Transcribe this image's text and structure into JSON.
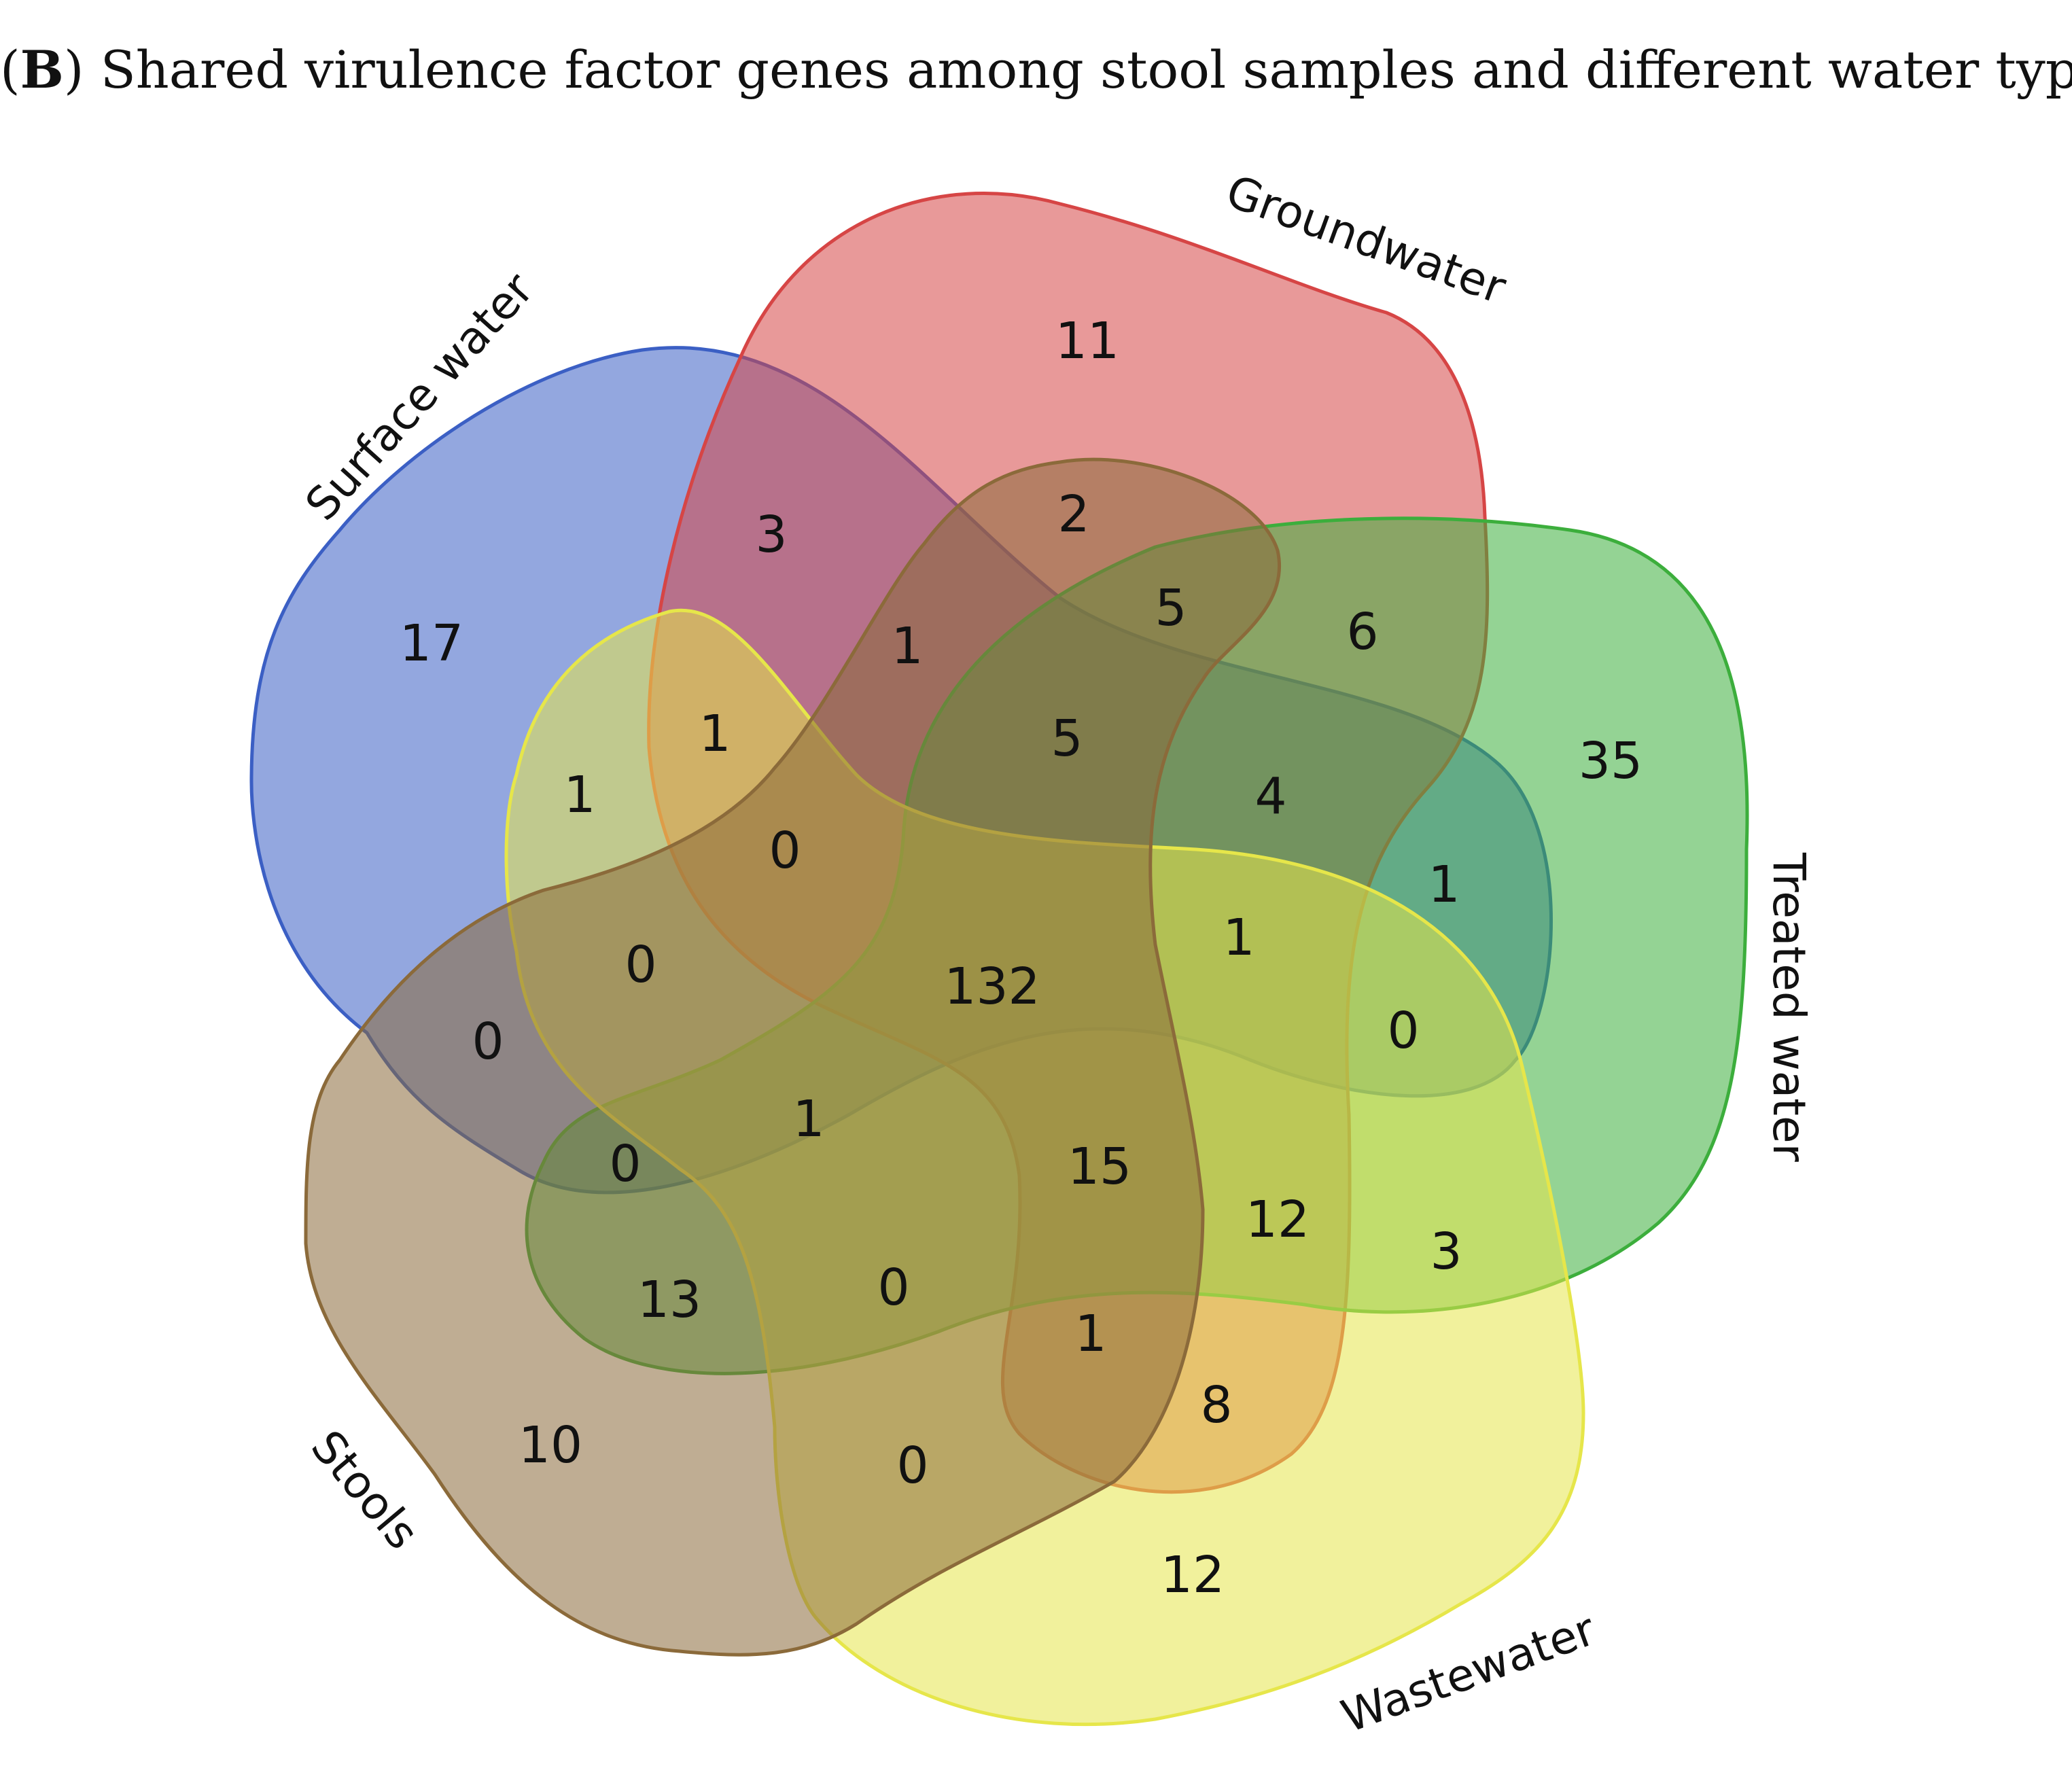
{
  "title": {
    "panel_letter": "B",
    "text": "Shared virulence factor genes among stool samples and different water types"
  },
  "sets": [
    {
      "name": "Surface water",
      "color": "#3b5fc4"
    },
    {
      "name": "Groundwater",
      "color": "#d64545"
    },
    {
      "name": "Treated water",
      "color": "#3cae3c"
    },
    {
      "name": "Wastewater",
      "color": "#e6e64a"
    },
    {
      "name": "Stools",
      "color": "#8b6a3a"
    }
  ],
  "regions": [
    {
      "sets": [
        "Surface water"
      ],
      "count": "17"
    },
    {
      "sets": [
        "Groundwater"
      ],
      "count": "11"
    },
    {
      "sets": [
        "Treated water"
      ],
      "count": "35"
    },
    {
      "sets": [
        "Wastewater"
      ],
      "count": "12"
    },
    {
      "sets": [
        "Stools"
      ],
      "count": "10"
    },
    {
      "sets": [
        "Surface water",
        "Groundwater"
      ],
      "count": "3"
    },
    {
      "sets": [
        "Groundwater",
        "Stools"
      ],
      "count": "2"
    },
    {
      "sets": [
        "Groundwater",
        "Treated water",
        "Stools"
      ],
      "count": "5"
    },
    {
      "sets": [
        "Groundwater",
        "Treated water"
      ],
      "count": "6"
    },
    {
      "sets": [
        "Surface water",
        "Groundwater",
        "Stools"
      ],
      "count": "1"
    },
    {
      "sets": [
        "Surface water",
        "Groundwater",
        "Treated water",
        "Stools"
      ],
      "count": "5"
    },
    {
      "sets": [
        "Groundwater",
        "Treated water",
        "Surface water"
      ],
      "count": "4"
    },
    {
      "sets": [
        "Treated water",
        "Surface water"
      ],
      "count": "1"
    },
    {
      "sets": [
        "Surface water",
        "Wastewater"
      ],
      "count": "1"
    },
    {
      "sets": [
        "Surface water",
        "Groundwater",
        "Wastewater"
      ],
      "count": "1"
    },
    {
      "sets": [
        "Surface water",
        "Groundwater",
        "Wastewater",
        "Stools"
      ],
      "count": "0"
    },
    {
      "sets": [
        "Surface water",
        "Wastewater",
        "Stools"
      ],
      "count": "0"
    },
    {
      "sets": [
        "Surface water",
        "Stools"
      ],
      "count": "0"
    },
    {
      "sets": [
        "Surface water",
        "Groundwater",
        "Treated water",
        "Wastewater",
        "Stools"
      ],
      "count": "132"
    },
    {
      "sets": [
        "Surface water",
        "Groundwater",
        "Treated water",
        "Wastewater"
      ],
      "count": "1"
    },
    {
      "sets": [
        "Surface water",
        "Treated water",
        "Wastewater"
      ],
      "count": "0"
    },
    {
      "sets": [
        "Surface water",
        "Treated water",
        "Stools"
      ],
      "count": "0"
    },
    {
      "sets": [
        "Surface water",
        "Treated water",
        "Wastewater",
        "Stools"
      ],
      "count": "1"
    },
    {
      "sets": [
        "Groundwater",
        "Treated water",
        "Wastewater",
        "Stools"
      ],
      "count": "15"
    },
    {
      "sets": [
        "Groundwater",
        "Treated water",
        "Wastewater"
      ],
      "count": "12"
    },
    {
      "sets": [
        "Treated water",
        "Wastewater"
      ],
      "count": "3"
    },
    {
      "sets": [
        "Treated water",
        "Stools"
      ],
      "count": "13"
    },
    {
      "sets": [
        "Treated water",
        "Wastewater",
        "Stools"
      ],
      "count": "0"
    },
    {
      "sets": [
        "Groundwater",
        "Wastewater",
        "Stools"
      ],
      "count": "1"
    },
    {
      "sets": [
        "Groundwater",
        "Wastewater"
      ],
      "count": "8"
    },
    {
      "sets": [
        "Wastewater",
        "Stools"
      ],
      "count": "0"
    }
  ]
}
